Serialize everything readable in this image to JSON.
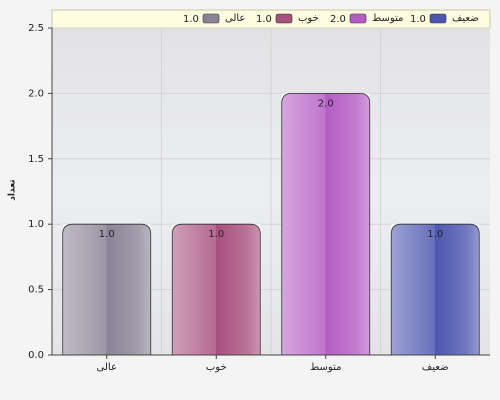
{
  "chart_data": {
    "type": "bar",
    "y_label": "تعداد",
    "categories": [
      "عالی",
      "خوب",
      "متوسط",
      "ضعیف"
    ],
    "values": [
      1,
      1,
      2,
      1
    ],
    "value_labels": [
      "1.0",
      "1.0",
      "2.0",
      "1.0"
    ],
    "colors": [
      "#8a8496",
      "#a8507e",
      "#b45cc4",
      "#4c56b0"
    ],
    "ylim": [
      0,
      2.5
    ],
    "yticks": [
      {
        "value": 0,
        "label": "0.0"
      },
      {
        "value": 0.5,
        "label": "0.5"
      },
      {
        "value": 1,
        "label": "1.0"
      },
      {
        "value": 1.5,
        "label": "1.5"
      },
      {
        "value": 2,
        "label": "2.0"
      },
      {
        "value": 2.5,
        "label": "2.5"
      }
    ],
    "grid": true,
    "legend": "top"
  }
}
